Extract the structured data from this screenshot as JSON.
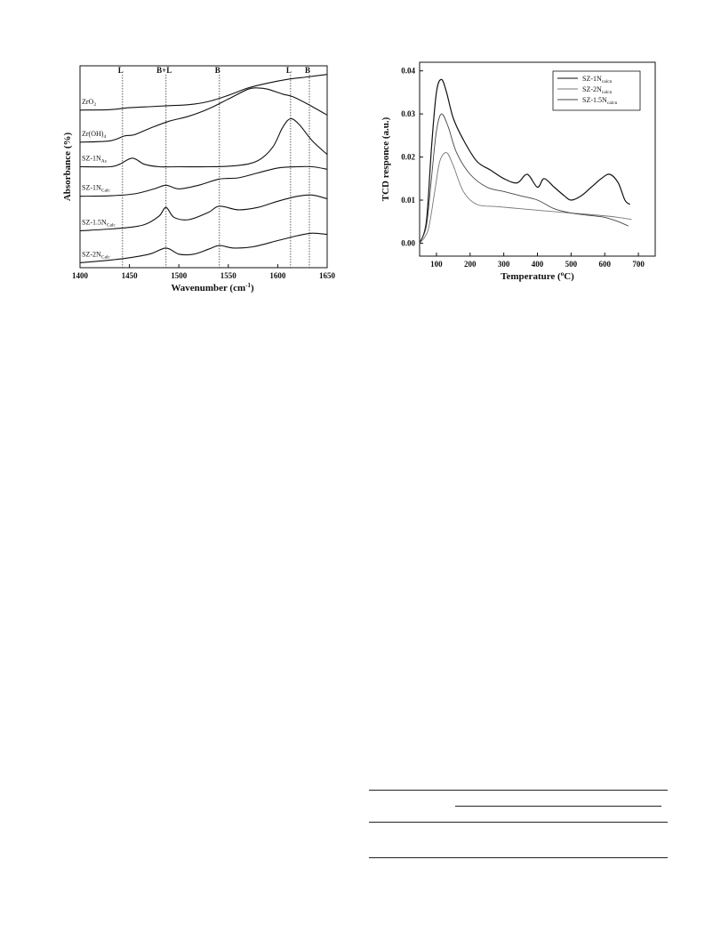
{
  "chart_data": [
    {
      "type": "line",
      "xlabel": "Wavenumber (cm",
      "xlabel_sup": "-1",
      "xlabel_close": ")",
      "ylabel": "Absorbance (%)",
      "xlim": [
        1400,
        1650
      ],
      "xticks": [
        1400,
        1450,
        1500,
        1550,
        1600,
        1650
      ],
      "yticks_shown": false,
      "grid": false,
      "annotations": [
        {
          "label": "L",
          "x": 1443
        },
        {
          "label": "B+L",
          "x": 1487
        },
        {
          "label": "B",
          "x": 1541
        },
        {
          "label": "L",
          "x": 1613
        },
        {
          "label": "B",
          "x": 1632
        }
      ],
      "series": [
        {
          "name": "ZrO",
          "sub": "2",
          "offset": 6.2,
          "x": [
            1400,
            1430,
            1450,
            1470,
            1490,
            1510,
            1530,
            1550,
            1570,
            1590,
            1610,
            1630,
            1650
          ],
          "y": [
            0.0,
            0.02,
            0.1,
            0.14,
            0.18,
            0.22,
            0.35,
            0.6,
            0.9,
            1.1,
            1.25,
            1.35,
            1.45
          ]
        },
        {
          "name": "Zr(OH)",
          "sub": "4",
          "offset": 4.9,
          "x": [
            1400,
            1430,
            1445,
            1455,
            1470,
            1490,
            1510,
            1530,
            1550,
            1570,
            1580,
            1590,
            1605,
            1615,
            1630,
            1650
          ],
          "y": [
            0.0,
            0.05,
            0.25,
            0.3,
            0.55,
            0.85,
            1.05,
            1.35,
            1.75,
            2.15,
            2.2,
            2.15,
            1.95,
            1.85,
            1.55,
            1.1
          ]
        },
        {
          "name": "SZ-1N",
          "sub": "As",
          "offset": 3.9,
          "x": [
            1400,
            1430,
            1440,
            1453,
            1465,
            1480,
            1500,
            1530,
            1560,
            1580,
            1595,
            1605,
            1613,
            1622,
            1635,
            1650
          ],
          "y": [
            0.0,
            0.0,
            0.1,
            0.35,
            0.1,
            0.0,
            0.0,
            0.0,
            0.05,
            0.25,
            0.8,
            1.6,
            1.95,
            1.7,
            1.05,
            0.5
          ]
        },
        {
          "name": "SZ-1N",
          "sub": "Calc",
          "offset": 2.7,
          "x": [
            1400,
            1430,
            1455,
            1475,
            1487,
            1500,
            1520,
            1541,
            1560,
            1580,
            1600,
            1620,
            1635,
            1650
          ],
          "y": [
            0.0,
            0.02,
            0.1,
            0.3,
            0.45,
            0.3,
            0.45,
            0.7,
            0.75,
            0.95,
            1.15,
            1.2,
            1.2,
            1.1
          ]
        },
        {
          "name": "SZ-1.5N",
          "sub": "Calc",
          "offset": 1.3,
          "x": [
            1400,
            1440,
            1465,
            1480,
            1487,
            1495,
            1510,
            1530,
            1541,
            1560,
            1580,
            1600,
            1620,
            1635,
            1650
          ],
          "y": [
            0.0,
            0.1,
            0.25,
            0.6,
            0.95,
            0.55,
            0.45,
            0.75,
            1.0,
            0.85,
            0.95,
            1.2,
            1.4,
            1.45,
            1.3
          ]
        },
        {
          "name": "SZ-2N",
          "sub": "Calc",
          "offset": 0.0,
          "x": [
            1400,
            1440,
            1470,
            1487,
            1500,
            1515,
            1530,
            1541,
            1555,
            1575,
            1600,
            1620,
            1635,
            1650
          ],
          "y": [
            0.0,
            0.15,
            0.35,
            0.6,
            0.35,
            0.35,
            0.55,
            0.7,
            0.6,
            0.65,
            0.9,
            1.1,
            1.2,
            1.15
          ]
        }
      ]
    },
    {
      "type": "line",
      "xlabel": "Temperature (",
      "xlabel_sup": "o",
      "xlabel_close": "C)",
      "ylabel": "TCD responce (a.u.)",
      "xlim": [
        50,
        750
      ],
      "ylim": [
        -0.003,
        0.042
      ],
      "xticks": [
        100,
        200,
        300,
        400,
        500,
        600,
        700
      ],
      "yticks": [
        0.0,
        0.01,
        0.02,
        0.03,
        0.04
      ],
      "ytick_labels": [
        "0.00",
        "0.01",
        "0.02",
        "0.03",
        "0.04"
      ],
      "grid": false,
      "legend": "top-right",
      "series": [
        {
          "name": "SZ-1N",
          "sub": "calcn",
          "color": "#111111",
          "x": [
            50,
            70,
            85,
            100,
            115,
            130,
            150,
            180,
            220,
            260,
            300,
            340,
            370,
            400,
            420,
            450,
            480,
            500,
            530,
            560,
            590,
            615,
            640,
            660,
            675
          ],
          "y": [
            0.0,
            0.005,
            0.022,
            0.035,
            0.038,
            0.035,
            0.029,
            0.024,
            0.019,
            0.017,
            0.015,
            0.014,
            0.016,
            0.013,
            0.015,
            0.013,
            0.011,
            0.01,
            0.011,
            0.013,
            0.015,
            0.016,
            0.014,
            0.01,
            0.009
          ]
        },
        {
          "name": "SZ-2N",
          "sub": "calcn",
          "color": "#777777",
          "x": [
            50,
            75,
            95,
            110,
            130,
            150,
            180,
            220,
            280,
            350,
            420,
            500,
            580,
            640,
            680
          ],
          "y": [
            0.0,
            0.003,
            0.012,
            0.019,
            0.021,
            0.018,
            0.012,
            0.009,
            0.0085,
            0.008,
            0.0075,
            0.007,
            0.0065,
            0.006,
            0.0055
          ]
        },
        {
          "name": "SZ-1.5N",
          "sub": "calcn",
          "color": "#444444",
          "x": [
            50,
            70,
            85,
            100,
            115,
            135,
            160,
            200,
            250,
            300,
            350,
            400,
            450,
            500,
            550,
            600,
            640,
            670
          ],
          "y": [
            0.0,
            0.004,
            0.015,
            0.026,
            0.03,
            0.027,
            0.021,
            0.016,
            0.013,
            0.012,
            0.011,
            0.01,
            0.008,
            0.007,
            0.0065,
            0.006,
            0.005,
            0.004
          ]
        }
      ]
    }
  ]
}
